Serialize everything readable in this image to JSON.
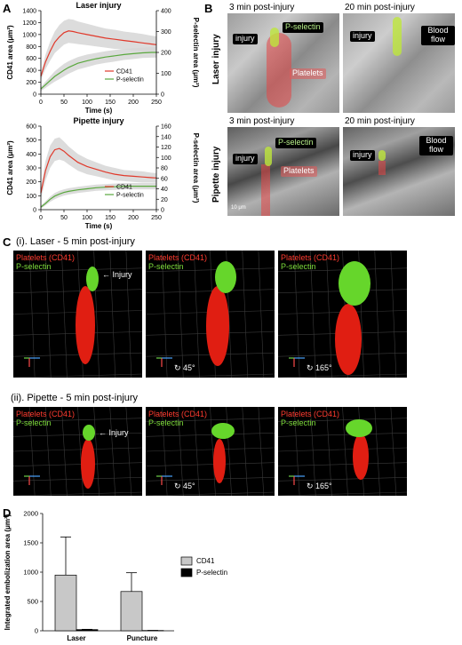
{
  "panels": {
    "a": "A",
    "b": "B",
    "c": "C",
    "d": "D"
  },
  "panel_a": {
    "legend_cd41": "CD41",
    "legend_psel": "P-selectin",
    "colors": {
      "cd41": "#e0392b",
      "psel": "#5aa83e",
      "band": "#d6d6d6"
    }
  },
  "chart_data": [
    {
      "type": "line",
      "title": "Laser injury",
      "xlabel": "Time (s)",
      "ylabel": "CD41 area (μm²)",
      "y2label": "P-selectin area (μm²)",
      "xlim": [
        0,
        250
      ],
      "ylim": [
        0,
        1400
      ],
      "y2lim": [
        0,
        400
      ],
      "xticks": [
        0,
        50,
        100,
        150,
        200,
        250
      ],
      "yticks": [
        0,
        200,
        400,
        600,
        800,
        1000,
        1200,
        1400
      ],
      "y2ticks": [
        0,
        100,
        200,
        300,
        400
      ],
      "series": [
        {
          "name": "CD41",
          "axis": "left",
          "x": [
            0,
            10,
            20,
            30,
            40,
            50,
            60,
            70,
            80,
            100,
            120,
            140,
            160,
            180,
            200,
            220,
            240,
            250
          ],
          "y": [
            300,
            540,
            720,
            870,
            960,
            1030,
            1060,
            1050,
            1030,
            1000,
            970,
            940,
            920,
            900,
            880,
            860,
            840,
            830
          ],
          "err": [
            60,
            120,
            160,
            180,
            200,
            200,
            200,
            200,
            190,
            180,
            170,
            160,
            160,
            150,
            150,
            150,
            140,
            140
          ]
        },
        {
          "name": "P-selectin",
          "axis": "right",
          "x": [
            0,
            10,
            20,
            30,
            40,
            50,
            60,
            70,
            80,
            100,
            120,
            140,
            160,
            180,
            200,
            220,
            240,
            250
          ],
          "y": [
            25,
            45,
            65,
            85,
            100,
            115,
            128,
            138,
            148,
            160,
            170,
            178,
            184,
            190,
            194,
            198,
            200,
            200
          ],
          "err": [
            10,
            15,
            20,
            25,
            28,
            30,
            30,
            30,
            30,
            30,
            28,
            28,
            28,
            26,
            26,
            25,
            25,
            25
          ]
        }
      ]
    },
    {
      "type": "line",
      "title": "Pipette injury",
      "xlabel": "Time (s)",
      "ylabel": "CD41 area (μm²)",
      "y2label": "P-selectin area (μm²)",
      "xlim": [
        0,
        250
      ],
      "ylim": [
        0,
        600
      ],
      "y2lim": [
        0,
        160
      ],
      "xticks": [
        0,
        50,
        100,
        150,
        200,
        250
      ],
      "yticks": [
        0,
        100,
        200,
        300,
        400,
        500,
        600
      ],
      "y2ticks": [
        0,
        20,
        40,
        60,
        80,
        100,
        120,
        140,
        160
      ],
      "series": [
        {
          "name": "CD41",
          "axis": "left",
          "x": [
            0,
            10,
            20,
            30,
            40,
            50,
            60,
            80,
            100,
            120,
            140,
            160,
            180,
            200,
            220,
            240,
            250
          ],
          "y": [
            120,
            280,
            380,
            430,
            440,
            420,
            390,
            340,
            310,
            290,
            270,
            255,
            245,
            240,
            235,
            230,
            228
          ],
          "err": [
            40,
            70,
            80,
            80,
            80,
            70,
            65,
            60,
            55,
            50,
            45,
            45,
            40,
            40,
            40,
            35,
            35
          ]
        },
        {
          "name": "P-selectin",
          "axis": "right",
          "x": [
            0,
            10,
            20,
            30,
            40,
            50,
            60,
            80,
            100,
            120,
            140,
            160,
            180,
            200,
            220,
            240,
            250
          ],
          "y": [
            5,
            12,
            20,
            26,
            30,
            33,
            35,
            38,
            40,
            42,
            43,
            44,
            45,
            45,
            45,
            45,
            45
          ],
          "err": [
            3,
            4,
            5,
            6,
            6,
            6,
            6,
            6,
            6,
            6,
            6,
            6,
            6,
            6,
            6,
            6,
            6
          ]
        }
      ]
    },
    {
      "type": "bar",
      "categories": [
        "Laser",
        "Puncture"
      ],
      "ylabel": "Integrated embolization area (μm²)",
      "ylim": [
        0,
        2000
      ],
      "yticks": [
        0,
        500,
        1000,
        1500,
        2000
      ],
      "series": [
        {
          "name": "CD41",
          "color": "#c8c8c8",
          "values": [
            950,
            670
          ],
          "err": [
            650,
            320
          ]
        },
        {
          "name": "P-selectin",
          "color": "#000000",
          "values": [
            20,
            5
          ],
          "err": [
            5,
            2
          ]
        }
      ]
    }
  ],
  "panel_b": {
    "row_labels": [
      "Laser injury",
      "Pipette injury"
    ],
    "col_titles": [
      "3 min post-injury",
      "20 min post-injury"
    ],
    "callout_injury": "injury",
    "callout_psel": "P-selectin",
    "callout_platelets": "Platelets",
    "callout_blood_flow": "Blood flow",
    "scale_text": "10 μm"
  },
  "panel_c": {
    "row1_title": "(i).  Laser - 5 min post-injury",
    "row2_title": "(ii).  Pipette - 5 min post-injury",
    "label_platelets": "Platelets (CD41)",
    "label_psel": "P-selectin",
    "injury_label": "Injury",
    "angle_45": "45°",
    "angle_165": "165°",
    "colors": {
      "platelets": "#e01e12",
      "psel": "#66d62b",
      "label_red": "#ff3b2f",
      "label_green": "#7ddc3a"
    }
  }
}
